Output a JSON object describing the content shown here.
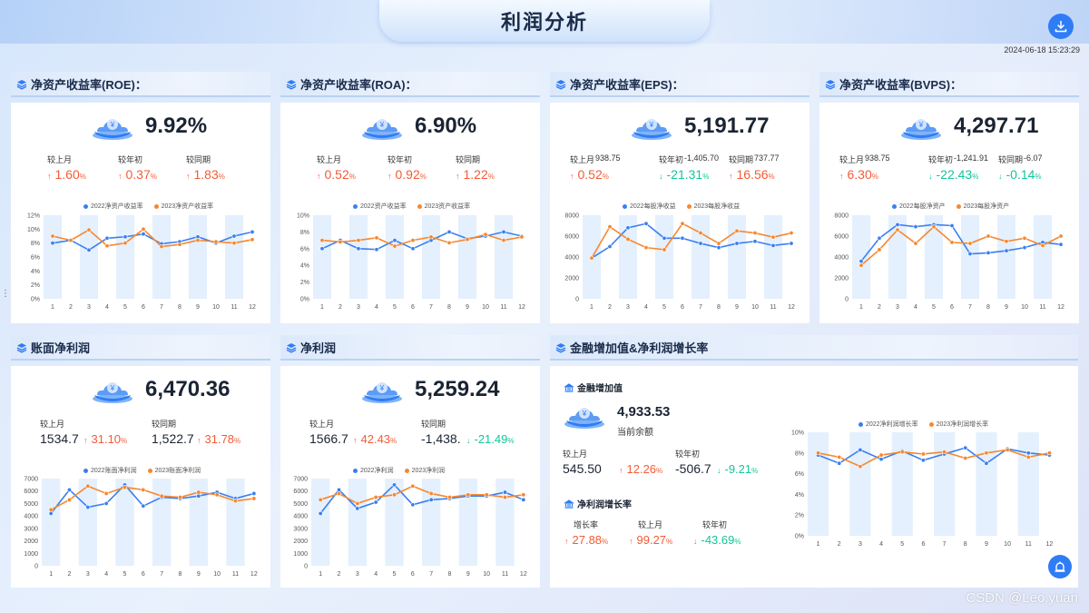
{
  "page": {
    "title": "利润分析",
    "timestamp": "2024-06-18 15:23:29",
    "watermark": "CSDN @Leo.yuan",
    "accent": "#2f7cf6",
    "up_color": "#f45b36",
    "down_color": "#13c69a",
    "series_colors": [
      "#3a7ff0",
      "#f7872e"
    ]
  },
  "cards": [
    {
      "title": "净资产收益率(ROE)：",
      "value": "9.92%",
      "compare": [
        {
          "label": "较上月",
          "extra": "",
          "pct": "1.60",
          "dir": "up"
        },
        {
          "label": "较年初",
          "extra": "",
          "pct": "0.37",
          "dir": "up"
        },
        {
          "label": "较同期",
          "extra": "",
          "pct": "1.83",
          "dir": "up"
        }
      ]
    },
    {
      "title": "净资产收益率(ROA)：",
      "value": "6.90%",
      "compare": [
        {
          "label": "较上月",
          "extra": "",
          "pct": "0.52",
          "dir": "up"
        },
        {
          "label": "较年初",
          "extra": "",
          "pct": "0.92",
          "dir": "up"
        },
        {
          "label": "较同期",
          "extra": "",
          "pct": "1.22",
          "dir": "up"
        }
      ]
    },
    {
      "title": "净资产收益率(EPS)：",
      "value": "5,191.77",
      "compare": [
        {
          "label": "较上月",
          "extra": "938.75",
          "pct": "0.52",
          "dir": "up"
        },
        {
          "label": "较年初",
          "extra": "-1,405.70",
          "pct": "-21.31",
          "dir": "down"
        },
        {
          "label": "较同期",
          "extra": "737.77",
          "pct": "16.56",
          "dir": "up"
        }
      ]
    },
    {
      "title": "净资产收益率(BVPS)：",
      "value": "4,297.71",
      "compare": [
        {
          "label": "较上月",
          "extra": "938.75",
          "pct": "6.30",
          "dir": "up"
        },
        {
          "label": "较年初",
          "extra": "-1,241.91",
          "pct": "-22.43",
          "dir": "down"
        },
        {
          "label": "较同期",
          "extra": "-6.07",
          "pct": "-0.14",
          "dir": "down"
        }
      ]
    },
    {
      "title": "账面净利润",
      "value": "6,470.36",
      "compare": [
        {
          "label": "较上月",
          "val": "1534.7",
          "pct": "31.10",
          "dir": "up"
        },
        {
          "label": "较同期",
          "val": "1,522.7",
          "pct": "31.78",
          "dir": "up"
        }
      ]
    },
    {
      "title": "净利润",
      "value": "5,259.24",
      "compare": [
        {
          "label": "较上月",
          "val": "1566.7",
          "pct": "42.43",
          "dir": "up"
        },
        {
          "label": "较同期",
          "val": "-1,438.",
          "pct": "-21.49",
          "dir": "down"
        }
      ]
    }
  ],
  "finance": {
    "title": "金融增加值&净利润增长率",
    "sub1": "金融增加值",
    "value": "4,933.53",
    "value_label": "当前余额",
    "c1": {
      "label": "较上月",
      "val": "545.50",
      "pct": "12.26",
      "dir": "up"
    },
    "c2": {
      "label": "较年初",
      "val": "-506.7",
      "pct": "-9.21",
      "dir": "down"
    },
    "sub2": "净利润增长率",
    "g": [
      {
        "label": "增长率",
        "pct": "27.88",
        "dir": "up"
      },
      {
        "label": "较上月",
        "pct": "99.27",
        "dir": "up"
      },
      {
        "label": "较年初",
        "pct": "-43.69",
        "dir": "down"
      }
    ]
  },
  "chart_data": [
    {
      "type": "line",
      "x": [
        1,
        2,
        3,
        4,
        5,
        6,
        7,
        8,
        9,
        10,
        11,
        12
      ],
      "ylim": [
        0,
        12
      ],
      "yticks": [
        "0%",
        "2%",
        "4%",
        "6%",
        "8%",
        "10%",
        "12%"
      ],
      "series": [
        {
          "name": "2022净资产收益率",
          "values": [
            8.0,
            8.4,
            7.0,
            8.7,
            8.9,
            9.3,
            7.9,
            8.2,
            8.9,
            8.0,
            9.0,
            9.6
          ]
        },
        {
          "name": "2023净资产收益率",
          "values": [
            9.0,
            8.4,
            9.9,
            7.6,
            8.0,
            10.0,
            7.5,
            7.8,
            8.4,
            8.2,
            8.0,
            8.5
          ]
        }
      ]
    },
    {
      "type": "line",
      "x": [
        1,
        2,
        3,
        4,
        5,
        6,
        7,
        8,
        9,
        10,
        11,
        12
      ],
      "ylim": [
        0,
        10
      ],
      "yticks": [
        "0%",
        "2%",
        "4%",
        "6%",
        "8%",
        "10%"
      ],
      "series": [
        {
          "name": "2022资产收益率",
          "values": [
            6.0,
            7.0,
            6.0,
            5.9,
            7.0,
            6.0,
            7.0,
            8.0,
            7.2,
            7.5,
            8.0,
            7.5
          ]
        },
        {
          "name": "2023资产收益率",
          "values": [
            7.0,
            6.8,
            7.0,
            7.3,
            6.3,
            7.0,
            7.4,
            6.7,
            7.1,
            7.7,
            7.0,
            7.4
          ]
        }
      ]
    },
    {
      "type": "line",
      "x": [
        1,
        2,
        3,
        4,
        5,
        6,
        7,
        8,
        9,
        10,
        11,
        12
      ],
      "ylim": [
        0,
        8000
      ],
      "yticks": [
        "0",
        "2000",
        "4000",
        "6000",
        "8000"
      ],
      "series": [
        {
          "name": "2022每股净收益",
          "values": [
            3900,
            5000,
            6800,
            7200,
            5800,
            5800,
            5300,
            4900,
            5300,
            5500,
            5100,
            5300
          ]
        },
        {
          "name": "2023每股净收益",
          "values": [
            3900,
            6900,
            5700,
            4900,
            4700,
            7200,
            6300,
            5300,
            6500,
            6300,
            5900,
            6300
          ]
        }
      ]
    },
    {
      "type": "line",
      "x": [
        1,
        2,
        3,
        4,
        5,
        6,
        7,
        8,
        9,
        10,
        11,
        12
      ],
      "ylim": [
        0,
        8000
      ],
      "yticks": [
        "0",
        "2000",
        "4000",
        "6000",
        "8000"
      ],
      "series": [
        {
          "name": "2022每股净资产",
          "values": [
            3600,
            5800,
            7100,
            6900,
            7100,
            7000,
            4300,
            4400,
            4600,
            4900,
            5400,
            5200
          ]
        },
        {
          "name": "2023每股净资产",
          "values": [
            3200,
            4700,
            6600,
            5300,
            6900,
            5400,
            5300,
            6000,
            5500,
            5800,
            5100,
            6000
          ]
        }
      ]
    },
    {
      "type": "line",
      "x": [
        1,
        2,
        3,
        4,
        5,
        6,
        7,
        8,
        9,
        10,
        11,
        12
      ],
      "ylim": [
        0,
        7000
      ],
      "yticks": [
        "0",
        "1000",
        "2000",
        "3000",
        "4000",
        "5000",
        "6000",
        "7000"
      ],
      "series": [
        {
          "name": "2022账面净利润",
          "values": [
            4200,
            6100,
            4700,
            5000,
            6500,
            4800,
            5500,
            5400,
            5600,
            5900,
            5400,
            5800
          ]
        },
        {
          "name": "2023账面净利润",
          "values": [
            4500,
            5300,
            6400,
            5800,
            6300,
            6100,
            5600,
            5500,
            5900,
            5700,
            5200,
            5400
          ]
        }
      ]
    },
    {
      "type": "line",
      "x": [
        1,
        2,
        3,
        4,
        5,
        6,
        7,
        8,
        9,
        10,
        11,
        12
      ],
      "ylim": [
        0,
        7000
      ],
      "yticks": [
        "0",
        "1000",
        "2000",
        "3000",
        "4000",
        "5000",
        "6000",
        "7000"
      ],
      "series": [
        {
          "name": "2022净利润",
          "values": [
            4200,
            6100,
            4600,
            5100,
            6500,
            4900,
            5300,
            5400,
            5600,
            5600,
            5900,
            5300
          ]
        },
        {
          "name": "2023净利润",
          "values": [
            5300,
            5800,
            5000,
            5500,
            5700,
            6400,
            5800,
            5500,
            5700,
            5700,
            5500,
            5700
          ]
        }
      ]
    },
    {
      "type": "line",
      "x": [
        1,
        2,
        3,
        4,
        5,
        6,
        7,
        8,
        9,
        10,
        11,
        12
      ],
      "ylim": [
        0,
        10
      ],
      "yticks": [
        "0%",
        "2%",
        "4%",
        "6%",
        "8%",
        "10%"
      ],
      "series": [
        {
          "name": "2022净利润增长率",
          "values": [
            7.8,
            7.0,
            8.3,
            7.4,
            8.2,
            7.3,
            7.9,
            8.5,
            7.0,
            8.4,
            8.0,
            7.8
          ]
        },
        {
          "name": "2023净利润增长率",
          "values": [
            8.0,
            7.6,
            6.7,
            7.8,
            8.1,
            7.9,
            8.1,
            7.5,
            8.0,
            8.3,
            7.6,
            8.0
          ]
        }
      ]
    }
  ]
}
